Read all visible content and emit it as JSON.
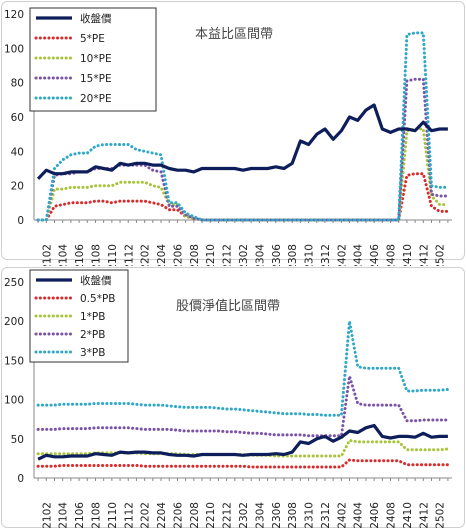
{
  "chart_data": [
    {
      "type": "line",
      "title": "本益比區間帶",
      "xlabel": "",
      "ylabel": "",
      "ylim": [
        0,
        120
      ],
      "yticks": [
        0,
        20,
        40,
        60,
        80,
        100,
        120
      ],
      "grid": false,
      "legend": "top-left",
      "x_tick_labels": [
        "2102",
        "2104",
        "2106",
        "2108",
        "2110",
        "2112",
        "2202",
        "2204",
        "2206",
        "2208",
        "2210",
        "2212",
        "2302",
        "2304",
        "2306",
        "2308",
        "2310",
        "2312",
        "2402",
        "2404",
        "2406",
        "2408",
        "2410",
        "2412",
        "2502"
      ],
      "series": [
        {
          "name": "收盤價",
          "color": "#0d1e5a",
          "style": "solid",
          "values": [
            24,
            29,
            27,
            27,
            28,
            28,
            28,
            31,
            30,
            29,
            33,
            32,
            33,
            33,
            32,
            32,
            30,
            29,
            29,
            28,
            30,
            30,
            30,
            30,
            30,
            29,
            30,
            30,
            30,
            31,
            30,
            33,
            46,
            44,
            50,
            53,
            47,
            52,
            60,
            58,
            64,
            67,
            53,
            51,
            53,
            53,
            52,
            57,
            52,
            53,
            53
          ]
        },
        {
          "name": "5*PE",
          "color": "#d92b2b",
          "style": "dotted",
          "values": [
            0,
            0,
            8,
            9,
            10,
            10,
            10,
            11,
            11,
            10,
            11,
            11,
            11,
            11,
            10,
            9,
            6,
            6,
            2,
            1,
            0,
            0,
            0,
            0,
            0,
            0,
            0,
            0,
            0,
            0,
            0,
            0,
            0,
            0,
            0,
            0,
            0,
            0,
            0,
            0,
            0,
            0,
            0,
            0,
            0,
            26,
            27,
            27,
            8,
            5,
            5
          ]
        },
        {
          "name": "10*PE",
          "color": "#a8c43a",
          "style": "dotted",
          "values": [
            0,
            0,
            18,
            18,
            19,
            19,
            19,
            20,
            20,
            20,
            22,
            22,
            22,
            22,
            20,
            19,
            9,
            9,
            2,
            1,
            0,
            0,
            0,
            0,
            0,
            0,
            0,
            0,
            0,
            0,
            0,
            0,
            0,
            0,
            0,
            0,
            0,
            0,
            0,
            0,
            0,
            0,
            0,
            0,
            0,
            52,
            53,
            53,
            14,
            9,
            9
          ]
        },
        {
          "name": "15*PE",
          "color": "#7a52a8",
          "style": "dotted",
          "values": [
            0,
            0,
            26,
            27,
            27,
            28,
            28,
            30,
            30,
            30,
            32,
            32,
            32,
            32,
            29,
            28,
            8,
            8,
            3,
            1,
            0,
            0,
            0,
            0,
            0,
            0,
            0,
            0,
            0,
            0,
            0,
            0,
            0,
            0,
            0,
            0,
            0,
            0,
            0,
            0,
            0,
            0,
            0,
            0,
            0,
            81,
            82,
            82,
            15,
            14,
            14
          ]
        },
        {
          "name": "20*PE",
          "color": "#2fa8c8",
          "style": "dotted",
          "values": [
            0,
            0,
            30,
            35,
            38,
            39,
            39,
            43,
            44,
            44,
            44,
            44,
            41,
            40,
            39,
            38,
            10,
            10,
            4,
            2,
            0,
            0,
            0,
            0,
            0,
            0,
            0,
            0,
            0,
            0,
            0,
            0,
            0,
            0,
            0,
            0,
            0,
            0,
            0,
            0,
            0,
            0,
            0,
            0,
            0,
            108,
            109,
            109,
            20,
            19,
            19
          ]
        }
      ]
    },
    {
      "type": "line",
      "title": "股價淨值比區間帶",
      "xlabel": "",
      "ylabel": "",
      "ylim": [
        0,
        250
      ],
      "yticks": [
        0,
        50,
        100,
        150,
        200,
        250
      ],
      "grid": false,
      "legend": "top-left",
      "x_tick_labels": [
        "2102",
        "2104",
        "2106",
        "2108",
        "2110",
        "2112",
        "2202",
        "2204",
        "2206",
        "2208",
        "2210",
        "2212",
        "2302",
        "2304",
        "2306",
        "2308",
        "2310",
        "2312",
        "2402",
        "2404",
        "2406",
        "2408",
        "2410",
        "2412",
        "2502"
      ],
      "series": [
        {
          "name": "收盤價",
          "color": "#0d1e5a",
          "style": "solid",
          "values": [
            24,
            29,
            27,
            27,
            28,
            28,
            28,
            31,
            30,
            29,
            33,
            32,
            33,
            33,
            32,
            32,
            30,
            29,
            29,
            28,
            30,
            30,
            30,
            30,
            30,
            29,
            30,
            30,
            30,
            31,
            30,
            33,
            46,
            44,
            50,
            53,
            47,
            52,
            60,
            58,
            64,
            67,
            53,
            51,
            53,
            53,
            52,
            57,
            52,
            53,
            53
          ]
        },
        {
          "name": "0.5*PB",
          "color": "#d92b2b",
          "style": "dotted",
          "values": [
            15,
            15,
            15,
            16,
            16,
            16,
            16,
            16,
            16,
            16,
            16,
            16,
            16,
            15,
            15,
            15,
            15,
            15,
            15,
            15,
            15,
            15,
            15,
            15,
            15,
            15,
            14,
            14,
            14,
            14,
            14,
            14,
            14,
            14,
            14,
            14,
            14,
            14,
            23,
            22,
            22,
            22,
            22,
            22,
            22,
            17,
            17,
            17,
            17,
            17,
            17
          ]
        },
        {
          "name": "1*PB",
          "color": "#a8c43a",
          "style": "dotted",
          "values": [
            31,
            31,
            31,
            31,
            31,
            31,
            31,
            32,
            32,
            32,
            32,
            32,
            32,
            31,
            31,
            31,
            31,
            31,
            30,
            30,
            30,
            30,
            30,
            30,
            30,
            30,
            29,
            29,
            29,
            28,
            28,
            28,
            28,
            28,
            28,
            28,
            28,
            28,
            48,
            46,
            46,
            46,
            46,
            46,
            46,
            36,
            36,
            36,
            36,
            36,
            37
          ]
        },
        {
          "name": "2*PB",
          "color": "#7a52a8",
          "style": "dotted",
          "values": [
            62,
            62,
            62,
            63,
            63,
            63,
            63,
            64,
            64,
            64,
            64,
            64,
            63,
            62,
            62,
            62,
            62,
            61,
            60,
            60,
            60,
            60,
            60,
            59,
            59,
            58,
            57,
            57,
            56,
            55,
            55,
            55,
            55,
            54,
            54,
            54,
            54,
            54,
            130,
            95,
            93,
            93,
            93,
            93,
            93,
            73,
            73,
            74,
            74,
            74,
            74
          ]
        },
        {
          "name": "3*PB",
          "color": "#2fa8c8",
          "style": "dotted",
          "values": [
            93,
            93,
            93,
            94,
            94,
            94,
            94,
            95,
            95,
            95,
            95,
            95,
            94,
            93,
            93,
            93,
            92,
            91,
            90,
            90,
            90,
            90,
            89,
            88,
            88,
            87,
            86,
            85,
            84,
            83,
            82,
            82,
            82,
            81,
            81,
            80,
            80,
            80,
            200,
            142,
            140,
            140,
            140,
            140,
            140,
            111,
            111,
            112,
            112,
            112,
            113
          ]
        }
      ]
    }
  ]
}
